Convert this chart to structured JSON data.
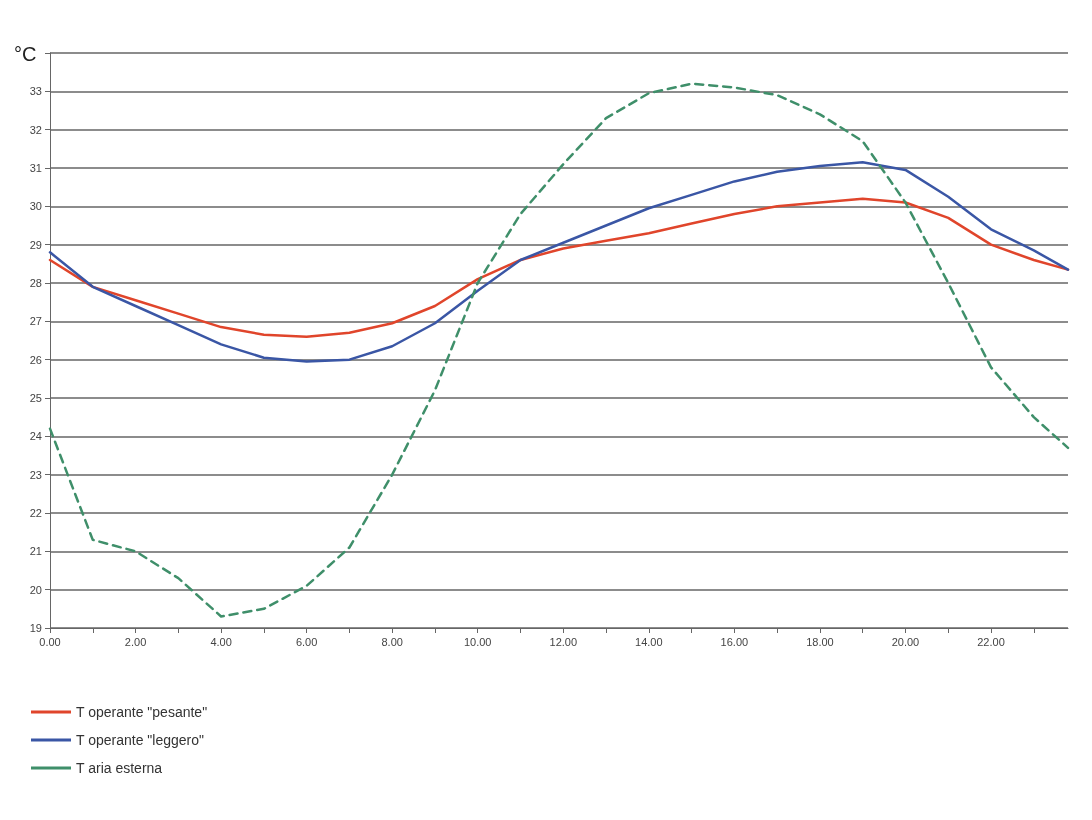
{
  "chart_data": {
    "type": "line",
    "ylabel": "°C",
    "x": [
      0,
      1,
      2,
      3,
      4,
      5,
      6,
      7,
      8,
      9,
      10,
      11,
      12,
      13,
      14,
      15,
      16,
      17,
      18,
      19,
      20,
      21,
      22,
      23,
      23.8
    ],
    "xlim": [
      0,
      23.8
    ],
    "xticks": [
      {
        "value": 0,
        "label": "0.00"
      },
      {
        "value": 2,
        "label": "2.00"
      },
      {
        "value": 4,
        "label": "4.00"
      },
      {
        "value": 6,
        "label": "6.00"
      },
      {
        "value": 8,
        "label": "8.00"
      },
      {
        "value": 10,
        "label": "10.00"
      },
      {
        "value": 12,
        "label": "12.00"
      },
      {
        "value": 14,
        "label": "14.00"
      },
      {
        "value": 16,
        "label": "16.00"
      },
      {
        "value": 18,
        "label": "18.00"
      },
      {
        "value": 20,
        "label": "20.00"
      },
      {
        "value": 22,
        "label": "22.00"
      }
    ],
    "ylim": [
      19,
      34
    ],
    "yticks": [
      19,
      20,
      21,
      22,
      23,
      24,
      25,
      26,
      27,
      28,
      29,
      30,
      31,
      32,
      33,
      {
        "value": 34,
        "label": null
      }
    ],
    "grid": "y",
    "legend": "bottom",
    "marker": "none",
    "series": [
      {
        "name": "T operante \"pesante\"",
        "color": "#e0452b",
        "line_style": "solid",
        "values": [
          28.6,
          27.9,
          27.55,
          27.2,
          26.85,
          26.65,
          26.6,
          26.7,
          26.95,
          27.4,
          28.1,
          28.6,
          28.9,
          29.1,
          29.3,
          29.55,
          29.8,
          30.0,
          30.1,
          30.2,
          30.1,
          29.7,
          29.0,
          28.6,
          28.35
        ]
      },
      {
        "name": "T operante \"leggero\"",
        "color": "#3a56a5",
        "line_style": "solid",
        "values": [
          28.8,
          27.9,
          27.4,
          26.9,
          26.4,
          26.05,
          25.95,
          26.0,
          26.35,
          26.95,
          27.8,
          28.6,
          29.05,
          29.5,
          29.95,
          30.3,
          30.65,
          30.9,
          31.05,
          31.15,
          30.95,
          30.25,
          29.4,
          28.85,
          28.35
        ]
      },
      {
        "name": "T aria esterna",
        "color": "#3f8f6a",
        "line_style": "dashed",
        "values": [
          24.2,
          21.3,
          21.0,
          20.3,
          19.3,
          19.5,
          20.1,
          21.1,
          23.0,
          25.2,
          28.0,
          29.8,
          31.1,
          32.3,
          32.95,
          33.2,
          33.1,
          32.9,
          32.4,
          31.7,
          30.1,
          28.0,
          25.8,
          24.5,
          23.7
        ]
      }
    ]
  }
}
